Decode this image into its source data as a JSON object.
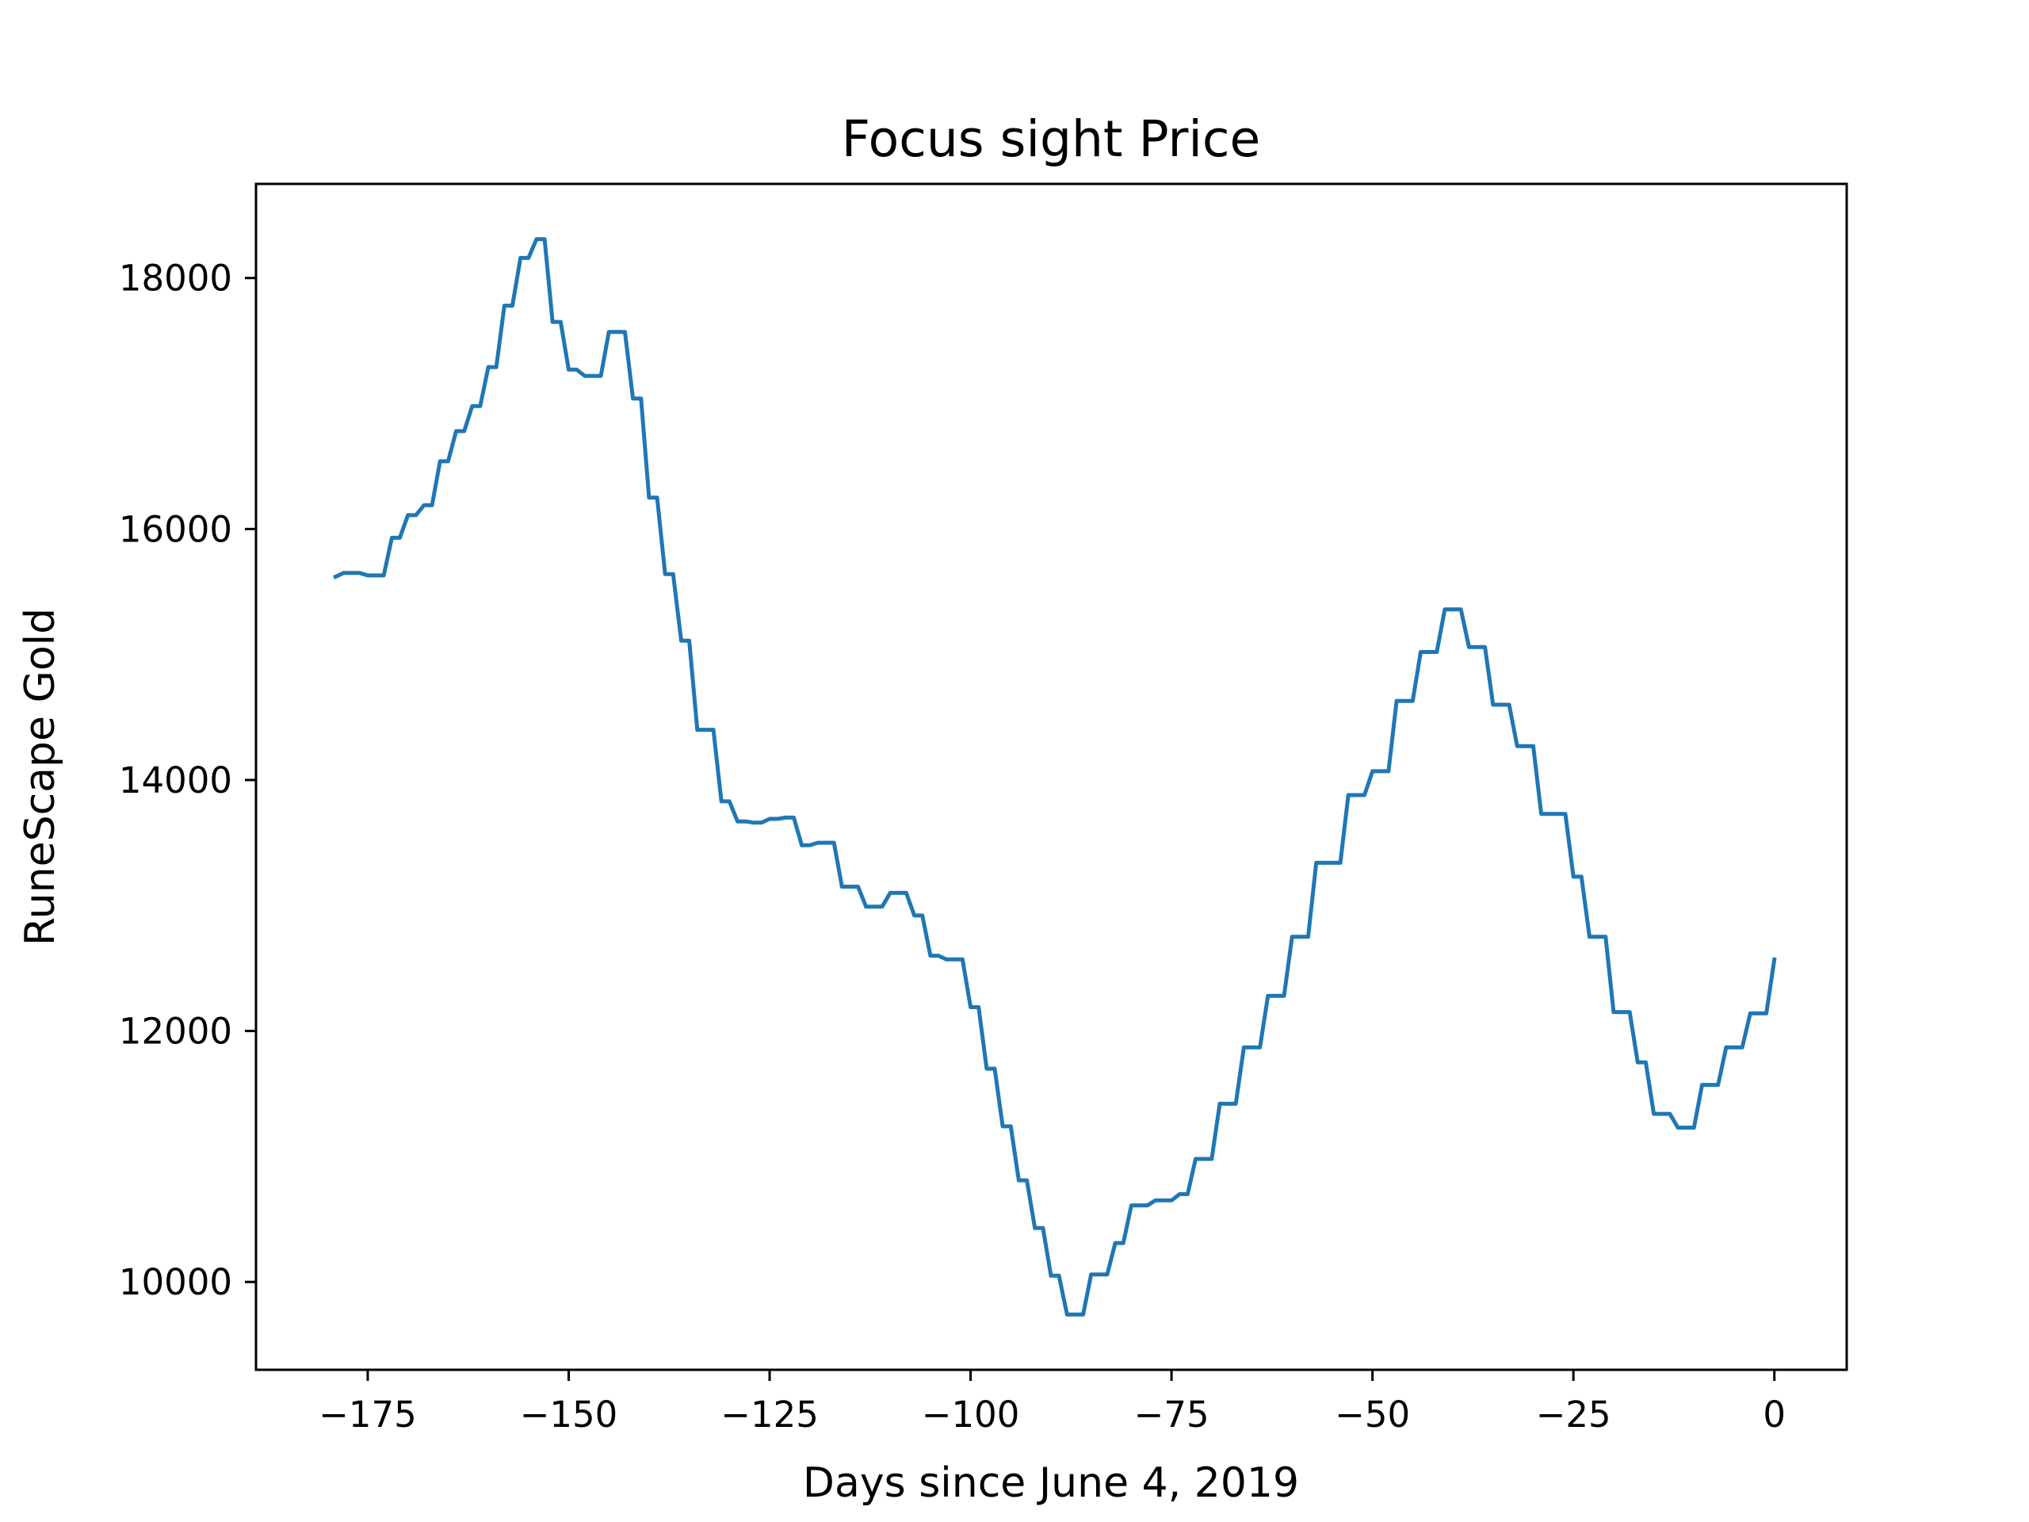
{
  "chart_data": {
    "type": "line",
    "title": "Focus sight Price",
    "xlabel": "Days since June 4, 2019",
    "ylabel": "RuneScape Gold",
    "xlim": [
      -188.9,
      9
    ],
    "ylim": [
      9300,
      18750
    ],
    "xticks": [
      -175,
      -150,
      -125,
      -100,
      -75,
      -50,
      -25,
      0
    ],
    "xtick_labels": [
      "−175",
      "−150",
      "−125",
      "−100",
      "−75",
      "−50",
      "−25",
      "0"
    ],
    "yticks": [
      10000,
      12000,
      14000,
      16000,
      18000
    ],
    "ytick_labels": [
      "10000",
      "12000",
      "14000",
      "16000",
      "18000"
    ],
    "grid": false,
    "legend": "none",
    "series": [
      {
        "color": "#1f77b4",
        "points": [
          [
            -179,
            15620
          ],
          [
            -178,
            15650
          ],
          [
            -177,
            15650
          ],
          [
            -176,
            15650
          ],
          [
            -175,
            15630
          ],
          [
            -174,
            15630
          ],
          [
            -173,
            15630
          ],
          [
            -172,
            15930
          ],
          [
            -171,
            15930
          ],
          [
            -170,
            16110
          ],
          [
            -169,
            16110
          ],
          [
            -168,
            16190
          ],
          [
            -167,
            16190
          ],
          [
            -166,
            16540
          ],
          [
            -165,
            16540
          ],
          [
            -164,
            16780
          ],
          [
            -163,
            16780
          ],
          [
            -162,
            16980
          ],
          [
            -161,
            16980
          ],
          [
            -160,
            17290
          ],
          [
            -159,
            17290
          ],
          [
            -158,
            17780
          ],
          [
            -157,
            17780
          ],
          [
            -156,
            18160
          ],
          [
            -155,
            18160
          ],
          [
            -154,
            18310
          ],
          [
            -153,
            18310
          ],
          [
            -152,
            17650
          ],
          [
            -151,
            17650
          ],
          [
            -150,
            17270
          ],
          [
            -149,
            17270
          ],
          [
            -148,
            17220
          ],
          [
            -147,
            17220
          ],
          [
            -146,
            17220
          ],
          [
            -145,
            17570
          ],
          [
            -144,
            17570
          ],
          [
            -143,
            17570
          ],
          [
            -142,
            17040
          ],
          [
            -141,
            17040
          ],
          [
            -140,
            16250
          ],
          [
            -139,
            16250
          ],
          [
            -138,
            15640
          ],
          [
            -137,
            15640
          ],
          [
            -136,
            15110
          ],
          [
            -135,
            15110
          ],
          [
            -134,
            14400
          ],
          [
            -133,
            14400
          ],
          [
            -132,
            14400
          ],
          [
            -131,
            13830
          ],
          [
            -130,
            13830
          ],
          [
            -129,
            13670
          ],
          [
            -128,
            13670
          ],
          [
            -127,
            13660
          ],
          [
            -126,
            13660
          ],
          [
            -125,
            13690
          ],
          [
            -124,
            13690
          ],
          [
            -123,
            13700
          ],
          [
            -122,
            13700
          ],
          [
            -121,
            13480
          ],
          [
            -120,
            13480
          ],
          [
            -119,
            13500
          ],
          [
            -118,
            13500
          ],
          [
            -117,
            13500
          ],
          [
            -116,
            13150
          ],
          [
            -115,
            13150
          ],
          [
            -114,
            13150
          ],
          [
            -113,
            12990
          ],
          [
            -112,
            12990
          ],
          [
            -111,
            12990
          ],
          [
            -110,
            13100
          ],
          [
            -109,
            13100
          ],
          [
            -108,
            13100
          ],
          [
            -107,
            12920
          ],
          [
            -106,
            12920
          ],
          [
            -105,
            12600
          ],
          [
            -104,
            12600
          ],
          [
            -103,
            12570
          ],
          [
            -102,
            12570
          ],
          [
            -101,
            12570
          ],
          [
            -100,
            12190
          ],
          [
            -99,
            12190
          ],
          [
            -98,
            11700
          ],
          [
            -97,
            11700
          ],
          [
            -96,
            11240
          ],
          [
            -95,
            11240
          ],
          [
            -94,
            10810
          ],
          [
            -93,
            10810
          ],
          [
            -92,
            10430
          ],
          [
            -91,
            10430
          ],
          [
            -90,
            10050
          ],
          [
            -89,
            10050
          ],
          [
            -88,
            9740
          ],
          [
            -87,
            9740
          ],
          [
            -86,
            9740
          ],
          [
            -85,
            10060
          ],
          [
            -84,
            10060
          ],
          [
            -83,
            10060
          ],
          [
            -82,
            10310
          ],
          [
            -81,
            10310
          ],
          [
            -80,
            10610
          ],
          [
            -79,
            10610
          ],
          [
            -78,
            10610
          ],
          [
            -77,
            10650
          ],
          [
            -76,
            10650
          ],
          [
            -75,
            10650
          ],
          [
            -74,
            10700
          ],
          [
            -73,
            10700
          ],
          [
            -72,
            10980
          ],
          [
            -71,
            10980
          ],
          [
            -70,
            10980
          ],
          [
            -69,
            11420
          ],
          [
            -68,
            11420
          ],
          [
            -67,
            11420
          ],
          [
            -66,
            11870
          ],
          [
            -65,
            11870
          ],
          [
            -64,
            11870
          ],
          [
            -63,
            12280
          ],
          [
            -62,
            12280
          ],
          [
            -61,
            12280
          ],
          [
            -60,
            12750
          ],
          [
            -59,
            12750
          ],
          [
            -58,
            12750
          ],
          [
            -57,
            13340
          ],
          [
            -56,
            13340
          ],
          [
            -55,
            13340
          ],
          [
            -54,
            13340
          ],
          [
            -53,
            13880
          ],
          [
            -52,
            13880
          ],
          [
            -51,
            13880
          ],
          [
            -50,
            14070
          ],
          [
            -49,
            14070
          ],
          [
            -48,
            14070
          ],
          [
            -47,
            14630
          ],
          [
            -46,
            14630
          ],
          [
            -45,
            14630
          ],
          [
            -44,
            15020
          ],
          [
            -43,
            15020
          ],
          [
            -42,
            15020
          ],
          [
            -41,
            15360
          ],
          [
            -40,
            15360
          ],
          [
            -39,
            15360
          ],
          [
            -38,
            15060
          ],
          [
            -37,
            15060
          ],
          [
            -36,
            15060
          ],
          [
            -35,
            14600
          ],
          [
            -34,
            14600
          ],
          [
            -33,
            14600
          ],
          [
            -32,
            14270
          ],
          [
            -31,
            14270
          ],
          [
            -30,
            14270
          ],
          [
            -29,
            13730
          ],
          [
            -28,
            13730
          ],
          [
            -27,
            13730
          ],
          [
            -26,
            13730
          ],
          [
            -25,
            13230
          ],
          [
            -24,
            13230
          ],
          [
            -23,
            12750
          ],
          [
            -22,
            12750
          ],
          [
            -21,
            12750
          ],
          [
            -20,
            12150
          ],
          [
            -19,
            12150
          ],
          [
            -18,
            12150
          ],
          [
            -17,
            11750
          ],
          [
            -16,
            11750
          ],
          [
            -15,
            11340
          ],
          [
            -14,
            11340
          ],
          [
            -13,
            11340
          ],
          [
            -12,
            11230
          ],
          [
            -11,
            11230
          ],
          [
            -10,
            11230
          ],
          [
            -9,
            11570
          ],
          [
            -8,
            11570
          ],
          [
            -7,
            11570
          ],
          [
            -6,
            11870
          ],
          [
            -5,
            11870
          ],
          [
            -4,
            11870
          ],
          [
            -3,
            12140
          ],
          [
            -2,
            12140
          ],
          [
            -1,
            12140
          ],
          [
            0,
            12570
          ]
        ]
      }
    ]
  }
}
